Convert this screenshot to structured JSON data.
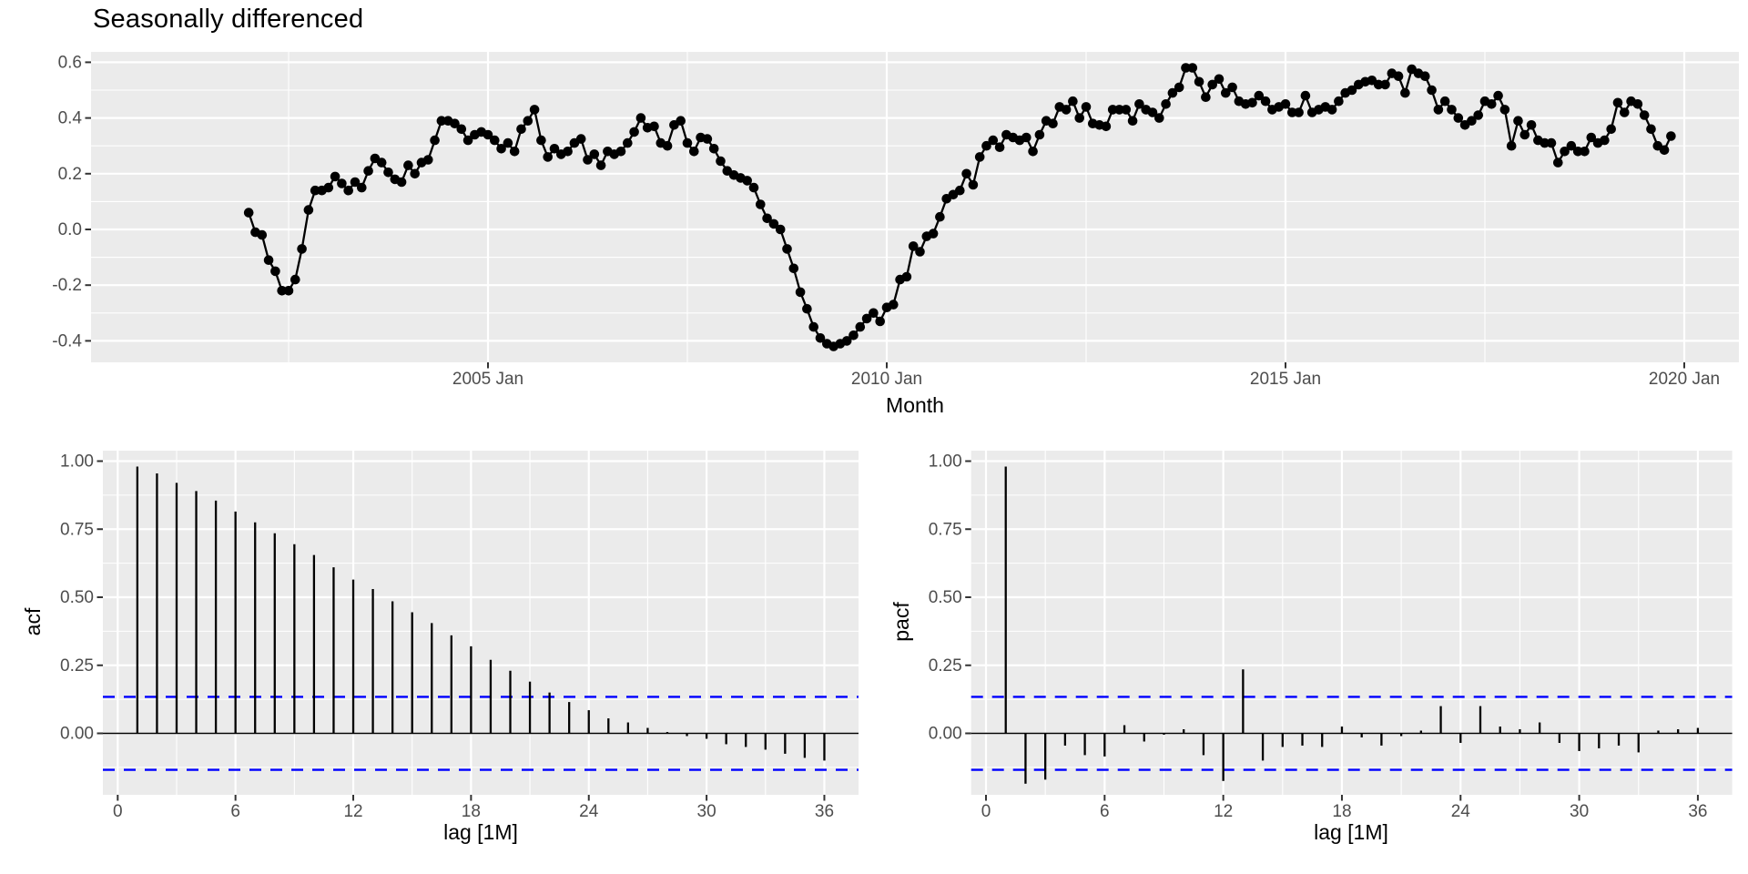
{
  "title": "Seasonally differenced",
  "colors": {
    "panel_bg": "#EBEBEB",
    "grid": "#FFFFFF",
    "tick_mark": "#333333",
    "tick_text": "#4D4D4D",
    "series": "#000000",
    "zero_line": "#000000",
    "ci_line": "#0000FF"
  },
  "chart_data": [
    {
      "id": "ts",
      "type": "line",
      "title": "Seasonally differenced",
      "xlabel": "Month",
      "ylabel": "",
      "xlim": [
        2000.05,
        2020.68
      ],
      "ylim": [
        -0.477,
        0.637
      ],
      "grid": true,
      "xticks": {
        "values": [
          2005,
          2010,
          2015,
          2020
        ],
        "labels": [
          "2005 Jan",
          "2010 Jan",
          "2015 Jan",
          "2020 Jan"
        ]
      },
      "xminor": [
        2002.5,
        2007.5,
        2012.5,
        2017.5
      ],
      "yticks": {
        "values": [
          0.6,
          0.4,
          0.2,
          0.0,
          -0.2,
          -0.4
        ],
        "labels": [
          "0.6",
          "0.4",
          "0.2",
          "0.0",
          "-0.2",
          "-0.4"
        ]
      },
      "yminor": [
        0.5,
        0.3,
        0.1,
        -0.1,
        -0.3
      ],
      "series": {
        "start_year": 2002,
        "start_month": 1,
        "frequency": "monthly",
        "values": [
          0.06,
          -0.01,
          -0.02,
          -0.11,
          -0.15,
          -0.22,
          -0.22,
          -0.18,
          -0.07,
          0.07,
          0.14,
          0.14,
          0.15,
          0.19,
          0.165,
          0.14,
          0.17,
          0.15,
          0.21,
          0.255,
          0.24,
          0.205,
          0.18,
          0.17,
          0.23,
          0.2,
          0.24,
          0.25,
          0.32,
          0.39,
          0.39,
          0.38,
          0.36,
          0.32,
          0.34,
          0.35,
          0.34,
          0.32,
          0.29,
          0.31,
          0.28,
          0.36,
          0.39,
          0.43,
          0.32,
          0.26,
          0.29,
          0.27,
          0.28,
          0.31,
          0.325,
          0.25,
          0.27,
          0.23,
          0.28,
          0.27,
          0.28,
          0.31,
          0.35,
          0.4,
          0.365,
          0.37,
          0.31,
          0.3,
          0.375,
          0.39,
          0.31,
          0.28,
          0.33,
          0.325,
          0.29,
          0.245,
          0.21,
          0.195,
          0.185,
          0.175,
          0.15,
          0.09,
          0.04,
          0.02,
          0.0,
          -0.07,
          -0.14,
          -0.225,
          -0.285,
          -0.35,
          -0.39,
          -0.41,
          -0.42,
          -0.41,
          -0.4,
          -0.38,
          -0.35,
          -0.32,
          -0.3,
          -0.33,
          -0.28,
          -0.27,
          -0.18,
          -0.17,
          -0.06,
          -0.08,
          -0.025,
          -0.015,
          0.045,
          0.11,
          0.125,
          0.14,
          0.2,
          0.16,
          0.26,
          0.3,
          0.32,
          0.295,
          0.34,
          0.33,
          0.32,
          0.33,
          0.28,
          0.34,
          0.39,
          0.38,
          0.44,
          0.43,
          0.46,
          0.4,
          0.44,
          0.38,
          0.375,
          0.37,
          0.43,
          0.43,
          0.43,
          0.39,
          0.45,
          0.43,
          0.42,
          0.4,
          0.45,
          0.49,
          0.51,
          0.58,
          0.58,
          0.53,
          0.475,
          0.52,
          0.54,
          0.49,
          0.51,
          0.46,
          0.45,
          0.455,
          0.48,
          0.46,
          0.43,
          0.44,
          0.45,
          0.42,
          0.42,
          0.48,
          0.42,
          0.43,
          0.44,
          0.43,
          0.46,
          0.49,
          0.5,
          0.52,
          0.53,
          0.535,
          0.52,
          0.52,
          0.56,
          0.55,
          0.49,
          0.575,
          0.56,
          0.55,
          0.5,
          0.43,
          0.46,
          0.43,
          0.4,
          0.375,
          0.39,
          0.41,
          0.46,
          0.45,
          0.48,
          0.43,
          0.3,
          0.39,
          0.34,
          0.375,
          0.32,
          0.31,
          0.31,
          0.24,
          0.28,
          0.3,
          0.28,
          0.28,
          0.33,
          0.31,
          0.32,
          0.36,
          0.455,
          0.42,
          0.46,
          0.45,
          0.41,
          0.36,
          0.3,
          0.285,
          0.335
        ]
      }
    },
    {
      "id": "acf",
      "type": "bar",
      "xlabel": "lag [1M]",
      "ylabel": "acf",
      "xlim": [
        -0.75,
        37.75
      ],
      "ylim": [
        -0.226,
        1.038
      ],
      "grid": true,
      "xticks": {
        "values": [
          0,
          6,
          12,
          18,
          24,
          30,
          36
        ],
        "labels": [
          "0",
          "6",
          "12",
          "18",
          "24",
          "30",
          "36"
        ]
      },
      "xminor": [
        3,
        9,
        15,
        21,
        27,
        33
      ],
      "yticks": {
        "values": [
          1.0,
          0.75,
          0.5,
          0.25,
          0.0
        ],
        "labels": [
          "1.00",
          "0.75",
          "0.50",
          "0.25",
          "0.00"
        ]
      },
      "yminor": [
        0.875,
        0.625,
        0.375,
        0.125,
        -0.125
      ],
      "ci_level": 0.134,
      "lags": [
        1,
        2,
        3,
        4,
        5,
        6,
        7,
        8,
        9,
        10,
        11,
        12,
        13,
        14,
        15,
        16,
        17,
        18,
        19,
        20,
        21,
        22,
        23,
        24,
        25,
        26,
        27,
        28,
        29,
        30,
        31,
        32,
        33,
        34,
        35,
        36
      ],
      "values": [
        0.98,
        0.955,
        0.92,
        0.89,
        0.855,
        0.815,
        0.775,
        0.735,
        0.695,
        0.655,
        0.61,
        0.565,
        0.53,
        0.485,
        0.445,
        0.405,
        0.36,
        0.32,
        0.27,
        0.23,
        0.19,
        0.15,
        0.115,
        0.085,
        0.055,
        0.04,
        0.02,
        0.005,
        -0.01,
        -0.02,
        -0.04,
        -0.05,
        -0.06,
        -0.075,
        -0.09,
        -0.1
      ]
    },
    {
      "id": "pacf",
      "type": "bar",
      "xlabel": "lag [1M]",
      "ylabel": "pacf",
      "xlim": [
        -0.75,
        37.75
      ],
      "ylim": [
        -0.226,
        1.038
      ],
      "grid": true,
      "xticks": {
        "values": [
          0,
          6,
          12,
          18,
          24,
          30,
          36
        ],
        "labels": [
          "0",
          "6",
          "12",
          "18",
          "24",
          "30",
          "36"
        ]
      },
      "xminor": [
        3,
        9,
        15,
        21,
        27,
        33
      ],
      "yticks": {
        "values": [
          1.0,
          0.75,
          0.5,
          0.25,
          0.0
        ],
        "labels": [
          "1.00",
          "0.75",
          "0.50",
          "0.25",
          "0.00"
        ]
      },
      "yminor": [
        0.875,
        0.625,
        0.375,
        0.125,
        -0.125
      ],
      "ci_level": 0.134,
      "lags": [
        1,
        2,
        3,
        4,
        5,
        6,
        7,
        8,
        9,
        10,
        11,
        12,
        13,
        14,
        15,
        16,
        17,
        18,
        19,
        20,
        21,
        22,
        23,
        24,
        25,
        26,
        27,
        28,
        29,
        30,
        31,
        32,
        33,
        34,
        35,
        36
      ],
      "values": [
        0.98,
        -0.185,
        -0.17,
        -0.045,
        -0.08,
        -0.085,
        0.03,
        -0.03,
        -0.005,
        0.015,
        -0.08,
        -0.175,
        0.235,
        -0.1,
        -0.05,
        -0.045,
        -0.05,
        0.025,
        -0.015,
        -0.045,
        -0.01,
        0.01,
        0.1,
        -0.035,
        0.1,
        0.025,
        0.015,
        0.04,
        -0.035,
        -0.065,
        -0.055,
        -0.045,
        -0.07,
        0.01,
        0.015,
        0.02
      ]
    }
  ]
}
